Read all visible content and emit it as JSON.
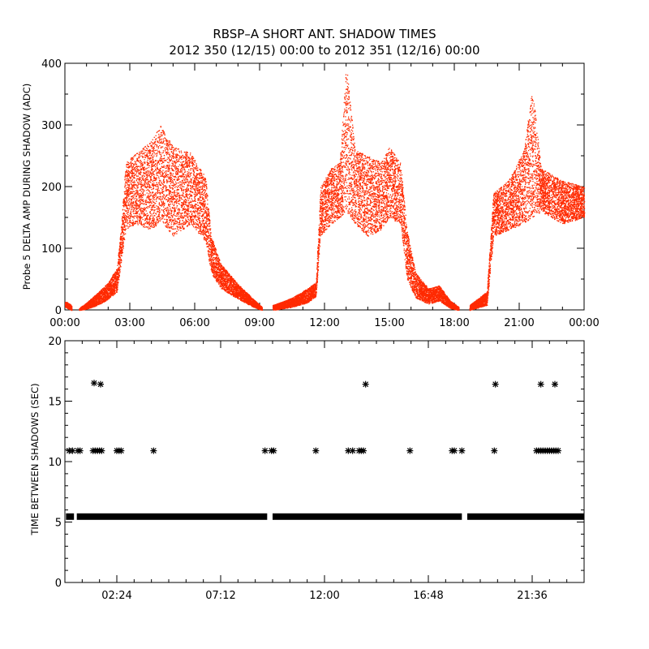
{
  "page": {
    "title_line1": "RBSP–A SHORT ANT. SHADOW TIMES",
    "title_line2": "2012 350 (12/15) 00:00 to 2012 351 (12/16) 00:00"
  },
  "chart_data": [
    {
      "type": "scatter",
      "title": "RBSP–A SHORT ANT. SHADOW TIMES / 2012 350 (12/15) 00:00 to 2012 351 (12/16) 00:00",
      "xlabel": "",
      "ylabel": "Probe 5 DELTA AMP DURING SHADOW (ADC)",
      "x_unit": "hours",
      "xlim": [
        0,
        24
      ],
      "ylim": [
        0,
        400
      ],
      "x_ticks": [
        0,
        3,
        6,
        9,
        12,
        15,
        18,
        21,
        24
      ],
      "x_tick_labels": [
        "00:00",
        "03:00",
        "06:00",
        "09:00",
        "12:00",
        "15:00",
        "18:00",
        "21:00",
        "00:00"
      ],
      "y_ticks": [
        0,
        100,
        200,
        300,
        400
      ],
      "y_tick_labels": [
        "0",
        "100",
        "200",
        "300",
        "400"
      ],
      "grid": false,
      "marker_color": "#ff2a00",
      "series": [
        {
          "envelope": [
            {
              "x": 0.0,
              "lower": 5,
              "upper": 15
            },
            {
              "x": 0.3,
              "lower": 0,
              "upper": 8
            },
            {
              "x": 0.6,
              "lower": null,
              "upper": null
            },
            {
              "x": 0.65,
              "lower": 0,
              "upper": 3
            },
            {
              "x": 1.0,
              "lower": 2,
              "upper": 12
            },
            {
              "x": 1.5,
              "lower": 8,
              "upper": 28
            },
            {
              "x": 2.0,
              "lower": 18,
              "upper": 45
            },
            {
              "x": 2.4,
              "lower": 30,
              "upper": 70
            },
            {
              "x": 2.6,
              "lower": 80,
              "upper": 140
            },
            {
              "x": 2.8,
              "lower": 130,
              "upper": 240
            },
            {
              "x": 3.3,
              "lower": 140,
              "upper": 255
            },
            {
              "x": 4.0,
              "lower": 130,
              "upper": 275
            },
            {
              "x": 4.4,
              "lower": 145,
              "upper": 300
            },
            {
              "x": 5.0,
              "lower": 120,
              "upper": 265
            },
            {
              "x": 5.8,
              "lower": 140,
              "upper": 255
            },
            {
              "x": 6.5,
              "lower": 110,
              "upper": 215
            },
            {
              "x": 6.75,
              "lower": 60,
              "upper": 120
            },
            {
              "x": 7.2,
              "lower": 35,
              "upper": 75
            },
            {
              "x": 8.0,
              "lower": 18,
              "upper": 42
            },
            {
              "x": 8.7,
              "lower": 5,
              "upper": 18
            },
            {
              "x": 9.1,
              "lower": 0,
              "upper": 5
            },
            {
              "x": 9.2,
              "lower": null,
              "upper": null
            },
            {
              "x": 9.6,
              "lower": 0,
              "upper": 8
            },
            {
              "x": 10.5,
              "lower": 5,
              "upper": 20
            },
            {
              "x": 11.2,
              "lower": 12,
              "upper": 35
            },
            {
              "x": 11.6,
              "lower": 22,
              "upper": 45
            },
            {
              "x": 11.8,
              "lower": 120,
              "upper": 200
            },
            {
              "x": 12.3,
              "lower": 140,
              "upper": 230
            },
            {
              "x": 12.7,
              "lower": 150,
              "upper": 240
            },
            {
              "x": 13.0,
              "lower": 160,
              "upper": 400
            },
            {
              "x": 13.4,
              "lower": 140,
              "upper": 260
            },
            {
              "x": 14.0,
              "lower": 120,
              "upper": 250
            },
            {
              "x": 14.6,
              "lower": 130,
              "upper": 240
            },
            {
              "x": 15.0,
              "lower": 150,
              "upper": 265
            },
            {
              "x": 15.5,
              "lower": 140,
              "upper": 240
            },
            {
              "x": 15.8,
              "lower": 50,
              "upper": 130
            },
            {
              "x": 16.2,
              "lower": 20,
              "upper": 60
            },
            {
              "x": 16.8,
              "lower": 10,
              "upper": 35
            },
            {
              "x": 17.3,
              "lower": 15,
              "upper": 40
            },
            {
              "x": 17.8,
              "lower": 3,
              "upper": 15
            },
            {
              "x": 18.2,
              "lower": 0,
              "upper": 5
            },
            {
              "x": 18.3,
              "lower": null,
              "upper": null
            },
            {
              "x": 18.7,
              "lower": 0,
              "upper": 8
            },
            {
              "x": 19.5,
              "lower": 8,
              "upper": 30
            },
            {
              "x": 19.8,
              "lower": 120,
              "upper": 190
            },
            {
              "x": 20.5,
              "lower": 130,
              "upper": 210
            },
            {
              "x": 21.2,
              "lower": 140,
              "upper": 260
            },
            {
              "x": 21.6,
              "lower": 150,
              "upper": 360
            },
            {
              "x": 22.0,
              "lower": 160,
              "upper": 230
            },
            {
              "x": 23.0,
              "lower": 140,
              "upper": 210
            },
            {
              "x": 24.0,
              "lower": 150,
              "upper": 200
            }
          ]
        }
      ]
    },
    {
      "type": "scatter",
      "title": "",
      "xlabel": "",
      "ylabel": "TIME BETWEEN SHADOWS (SEC)",
      "x_unit": "hours",
      "xlim": [
        0,
        24
      ],
      "ylim": [
        0,
        20
      ],
      "x_ticks": [
        2.4,
        7.2,
        12.0,
        16.8,
        21.6
      ],
      "x_tick_labels": [
        "02:24",
        "07:12",
        "12:00",
        "16:48",
        "21:36"
      ],
      "y_ticks": [
        0,
        5,
        10,
        15,
        20
      ],
      "y_tick_labels": [
        "0",
        "5",
        "10",
        "15",
        "20"
      ],
      "grid": false,
      "marker": "asterisk",
      "marker_color": "#000000",
      "series": [
        {
          "baseline": {
            "y": 5.45,
            "ranges": [
              [
                0.05,
                0.42
              ],
              [
                0.55,
                9.35
              ],
              [
                9.6,
                18.35
              ],
              [
                18.6,
                24.0
              ]
            ]
          },
          "points": [
            [
              0.2,
              10.9
            ],
            [
              0.35,
              10.9
            ],
            [
              0.6,
              10.9
            ],
            [
              0.7,
              10.9
            ],
            [
              1.3,
              10.9
            ],
            [
              1.4,
              10.9
            ],
            [
              1.5,
              10.9
            ],
            [
              1.6,
              10.9
            ],
            [
              1.7,
              10.9
            ],
            [
              1.35,
              16.5
            ],
            [
              1.65,
              16.4
            ],
            [
              2.4,
              10.9
            ],
            [
              2.5,
              10.9
            ],
            [
              2.6,
              10.9
            ],
            [
              4.1,
              10.9
            ],
            [
              9.25,
              10.9
            ],
            [
              9.55,
              10.9
            ],
            [
              9.65,
              10.9
            ],
            [
              11.6,
              10.9
            ],
            [
              13.1,
              10.9
            ],
            [
              13.3,
              10.9
            ],
            [
              13.6,
              10.9
            ],
            [
              13.7,
              10.9
            ],
            [
              13.8,
              10.9
            ],
            [
              13.9,
              16.4
            ],
            [
              15.95,
              10.9
            ],
            [
              17.9,
              10.9
            ],
            [
              18.0,
              10.9
            ],
            [
              18.35,
              10.9
            ],
            [
              19.85,
              10.9
            ],
            [
              19.9,
              16.4
            ],
            [
              22.0,
              16.4
            ],
            [
              22.65,
              16.4
            ],
            [
              21.8,
              10.9
            ],
            [
              21.9,
              10.9
            ],
            [
              22.0,
              10.9
            ],
            [
              22.1,
              10.9
            ],
            [
              22.2,
              10.9
            ],
            [
              22.3,
              10.9
            ],
            [
              22.4,
              10.9
            ],
            [
              22.5,
              10.9
            ],
            [
              22.6,
              10.9
            ],
            [
              22.7,
              10.9
            ],
            [
              22.8,
              10.9
            ]
          ]
        }
      ]
    }
  ]
}
